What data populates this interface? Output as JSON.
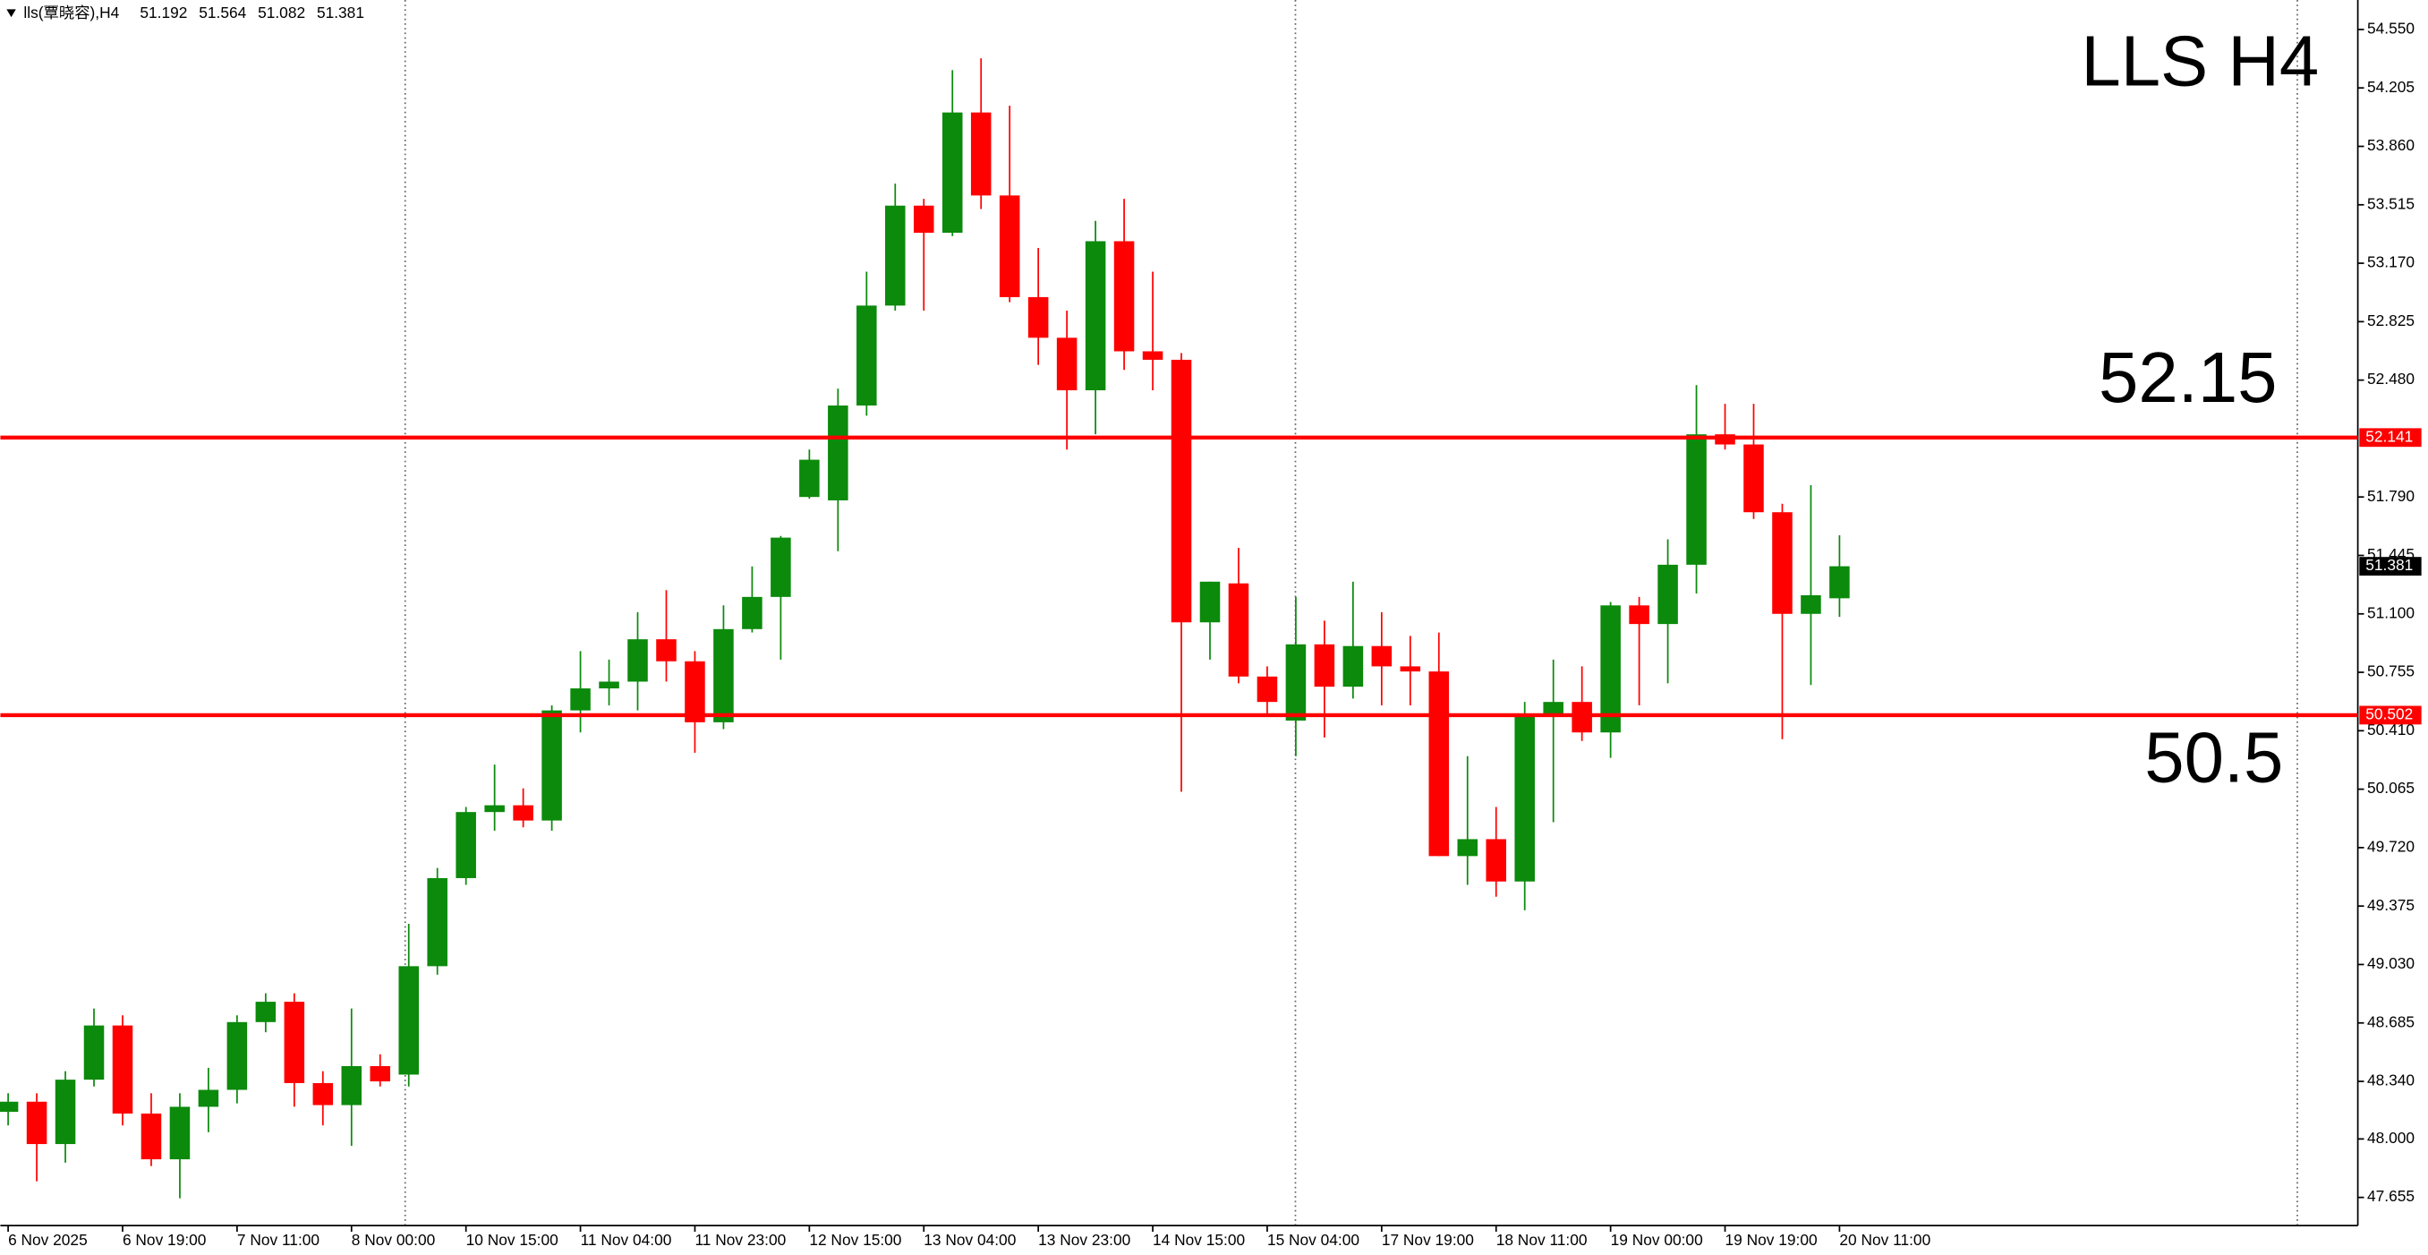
{
  "chart_data": {
    "type": "candlestick",
    "symbol": "lls(覃晓容),H4",
    "title": "LLS  H4",
    "categories": [
      "6 Nov 2025",
      null,
      null,
      null,
      "6 Nov 19:00",
      null,
      null,
      null,
      "7 Nov 11:00",
      null,
      null,
      null,
      "8 Nov 00:00",
      null,
      null,
      null,
      "10 Nov 15:00",
      null,
      null,
      null,
      "11 Nov 04:00",
      null,
      null,
      null,
      "11 Nov 23:00",
      null,
      null,
      null,
      "12 Nov 15:00",
      null,
      null,
      null,
      "13 Nov 04:00",
      null,
      null,
      null,
      "13 Nov 23:00",
      null,
      null,
      null,
      "14 Nov 15:00",
      null,
      null,
      null,
      "15 Nov 04:00",
      null,
      null,
      null,
      "17 Nov 19:00",
      null,
      null,
      null,
      "18 Nov 11:00",
      null,
      null,
      null,
      "19 Nov 00:00",
      null,
      null,
      null,
      "19 Nov 19:00",
      null,
      null,
      null,
      "20 Nov 11:00"
    ],
    "open": [
      48.16,
      48.22,
      47.97,
      48.35,
      48.67,
      48.15,
      47.88,
      48.19,
      48.29,
      48.69,
      48.81,
      48.33,
      48.2,
      48.43,
      48.38,
      49.02,
      49.54,
      49.93,
      49.97,
      49.88,
      50.53,
      50.66,
      50.7,
      50.95,
      50.82,
      50.46,
      51.01,
      51.2,
      51.79,
      51.77,
      52.33,
      52.92,
      53.51,
      53.35,
      54.06,
      53.57,
      52.97,
      52.73,
      52.42,
      53.3,
      52.65,
      52.6,
      51.05,
      51.28,
      50.73,
      50.47,
      50.92,
      50.67,
      50.91,
      50.79,
      50.76,
      49.67,
      49.77,
      49.52,
      50.5,
      50.58,
      50.4,
      51.15,
      51.04,
      51.39,
      52.16,
      52.1,
      51.7,
      51.1,
      51.192
    ],
    "high": [
      48.27,
      48.27,
      48.4,
      48.77,
      48.73,
      48.27,
      48.27,
      48.42,
      48.73,
      48.86,
      48.86,
      48.4,
      48.77,
      48.5,
      49.27,
      49.6,
      49.96,
      50.21,
      50.07,
      50.56,
      50.88,
      50.83,
      51.11,
      51.24,
      50.88,
      51.15,
      51.38,
      51.56,
      52.07,
      52.43,
      53.12,
      53.64,
      53.55,
      54.31,
      54.38,
      54.1,
      53.26,
      52.89,
      53.42,
      53.55,
      53.12,
      52.64,
      51.29,
      51.49,
      50.79,
      51.2,
      51.06,
      51.29,
      51.11,
      50.97,
      50.99,
      50.26,
      49.96,
      50.58,
      50.83,
      50.79,
      51.17,
      51.2,
      51.54,
      52.45,
      52.34,
      52.34,
      51.75,
      51.86,
      51.564
    ],
    "low": [
      48.08,
      47.75,
      47.86,
      48.31,
      48.08,
      47.84,
      47.65,
      48.04,
      48.21,
      48.63,
      48.19,
      48.08,
      47.96,
      48.31,
      48.31,
      48.97,
      49.5,
      49.82,
      49.84,
      49.82,
      50.4,
      50.56,
      50.53,
      50.7,
      50.28,
      50.42,
      50.99,
      50.83,
      51.78,
      51.47,
      52.27,
      52.89,
      52.89,
      53.33,
      53.49,
      52.94,
      52.57,
      52.07,
      52.16,
      52.54,
      52.42,
      50.05,
      50.83,
      50.69,
      50.51,
      50.26,
      50.37,
      50.6,
      50.56,
      50.56,
      49.67,
      49.5,
      49.43,
      49.35,
      49.87,
      50.35,
      50.25,
      50.56,
      50.69,
      51.22,
      52.07,
      51.66,
      50.36,
      50.68,
      51.082
    ],
    "close": [
      48.22,
      47.97,
      48.35,
      48.67,
      48.15,
      47.88,
      48.19,
      48.29,
      48.69,
      48.81,
      48.33,
      48.2,
      48.43,
      48.34,
      49.02,
      49.54,
      49.93,
      49.97,
      49.88,
      50.53,
      50.66,
      50.7,
      50.95,
      50.82,
      50.46,
      51.01,
      51.2,
      51.55,
      52.01,
      52.33,
      52.92,
      53.51,
      53.35,
      54.06,
      53.57,
      52.97,
      52.73,
      52.42,
      53.3,
      52.65,
      52.6,
      51.05,
      51.29,
      50.73,
      50.58,
      50.92,
      50.67,
      50.91,
      50.79,
      50.76,
      49.67,
      49.77,
      49.52,
      50.5,
      50.58,
      50.4,
      51.15,
      51.04,
      51.39,
      52.16,
      52.1,
      51.7,
      51.1,
      51.21,
      51.381
    ],
    "up_color": "#0b8a0b",
    "down_color": "#ff0000",
    "ylim": [
      47.489,
      54.724
    ],
    "yticks": [
      {
        "value": 54.55,
        "label": "54.550"
      },
      54.205,
      {
        "value": 53.86,
        "label": "53.860"
      },
      53.515,
      {
        "value": 53.17,
        "label": "53.170"
      },
      52.825,
      {
        "value": 52.48,
        "label": "52.480"
      },
      {
        "value": 51.79,
        "label": "51.790"
      },
      51.445,
      {
        "value": 51.1,
        "label": "51.100"
      },
      50.755,
      {
        "value": 50.41,
        "label": "50.410"
      },
      50.065,
      {
        "value": 49.72,
        "label": "49.720"
      },
      49.375,
      {
        "value": 49.03,
        "label": "49.030"
      },
      48.685,
      {
        "value": 48.34,
        "label": "48.340"
      },
      {
        "value": 48,
        "label": "48.000"
      },
      47.655
    ],
    "hlines": [
      {
        "value": 52.141,
        "color": "#ff0000"
      },
      {
        "value": 50.502,
        "color": "#ff0000"
      }
    ],
    "annotations": [
      "52.15",
      "50.5"
    ]
  }
}
